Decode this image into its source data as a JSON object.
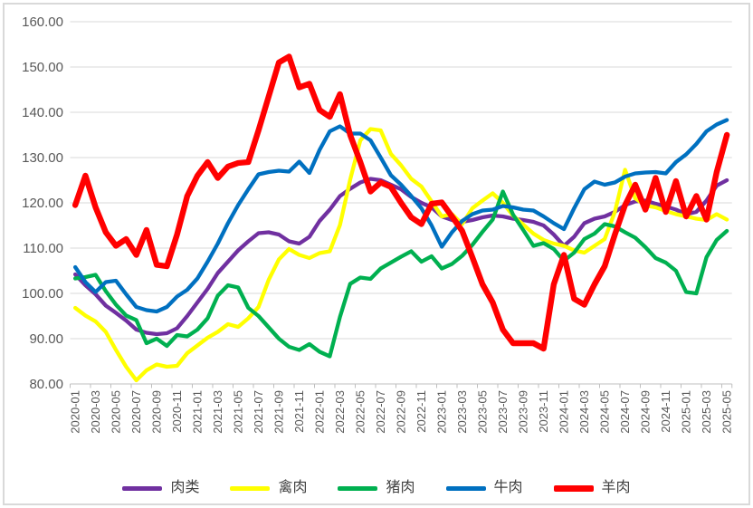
{
  "chart": {
    "background": "#FFFFFF",
    "frame_border_color": "#D9D9D9",
    "gridline_color": "#D9D9D9",
    "axis_color": "#BFBFBF",
    "tick_color": "#BFBFBF",
    "label_color": "#595959",
    "y_axis_labels": [
      "160.00",
      "150.00",
      "140.00",
      "130.00",
      "120.00",
      "110.00",
      "100.00",
      "90.00",
      "80.00"
    ],
    "x_axis_tick_labels": [
      "2020-01",
      "2020-03",
      "2020-05",
      "2020-07",
      "2020-09",
      "2020-11",
      "2021-01",
      "2021-03",
      "2021-05",
      "2021-07",
      "2021-09",
      "2021-11",
      "2022-01",
      "2022-03",
      "2022-05",
      "2022-07",
      "2022-09",
      "2022-11",
      "2023-01",
      "2023-03",
      "2023-05",
      "2023-07",
      "2023-09",
      "2023-11",
      "2024-01",
      "2024-03",
      "2024-05",
      "2024-07",
      "2024-09",
      "2024-11",
      "2025-01",
      "2025-03",
      "2025-05"
    ]
  },
  "chart_data": {
    "type": "line",
    "title": "",
    "xlabel": "",
    "ylabel": "",
    "ylim": [
      80,
      160
    ],
    "y_step": 10,
    "grid": true,
    "legend_position": "bottom",
    "categories": [
      "2020-01",
      "2020-02",
      "2020-03",
      "2020-04",
      "2020-05",
      "2020-06",
      "2020-07",
      "2020-08",
      "2020-09",
      "2020-10",
      "2020-11",
      "2020-12",
      "2021-01",
      "2021-02",
      "2021-03",
      "2021-04",
      "2021-05",
      "2021-06",
      "2021-07",
      "2021-08",
      "2021-09",
      "2021-10",
      "2021-11",
      "2021-12",
      "2022-01",
      "2022-02",
      "2022-03",
      "2022-04",
      "2022-05",
      "2022-06",
      "2022-07",
      "2022-08",
      "2022-09",
      "2022-10",
      "2022-11",
      "2022-12",
      "2023-01",
      "2023-02",
      "2023-03",
      "2023-04",
      "2023-05",
      "2023-06",
      "2023-07",
      "2023-08",
      "2023-09",
      "2023-10",
      "2023-11",
      "2023-12",
      "2024-01",
      "2024-02",
      "2024-03",
      "2024-04",
      "2024-05",
      "2024-06",
      "2024-07",
      "2024-08",
      "2024-09",
      "2024-10",
      "2024-11",
      "2024-12",
      "2025-01",
      "2025-02",
      "2025-03",
      "2025-04",
      "2025-05"
    ],
    "series": [
      {
        "name": "肉类",
        "id": "meat",
        "color": "#7030A0",
        "line_width": 4.3,
        "values": [
          104.2,
          101.8,
          99.8,
          97.3,
          95.7,
          94,
          92,
          91.3,
          91,
          91.2,
          92.3,
          95,
          98,
          101,
          104.5,
          107,
          109.5,
          111.5,
          113.3,
          113.5,
          113,
          111.5,
          111,
          112.5,
          116,
          118.5,
          121.5,
          123.1,
          124.5,
          125.3,
          125,
          124,
          123,
          121.3,
          120,
          119,
          117,
          116.2,
          115.8,
          116.2,
          116.8,
          117.2,
          117,
          116.5,
          116.2,
          115.8,
          115,
          113,
          110.5,
          112.5,
          115.5,
          116.5,
          117,
          118,
          119.5,
          120.3,
          120.5,
          119.8,
          119.2,
          118.5,
          117.5,
          118,
          120.5,
          123.8,
          125
        ]
      },
      {
        "name": "禽肉",
        "id": "poultry",
        "color": "#FFFF00",
        "line_width": 4.3,
        "values": [
          96.8,
          95.1,
          93.8,
          91.5,
          87.5,
          83.8,
          80.8,
          83,
          84.3,
          83.8,
          84,
          86.8,
          88.5,
          90.2,
          91.5,
          93.2,
          92.6,
          94.5,
          97,
          103,
          107.5,
          109.8,
          108.5,
          107.8,
          108.9,
          109.3,
          115.1,
          125.1,
          133.8,
          136.3,
          136,
          130.8,
          128.3,
          125.3,
          123.6,
          120.3,
          117,
          117.5,
          115.3,
          118.8,
          120.5,
          122.1,
          120,
          117.2,
          115.2,
          113.2,
          111.8,
          111,
          110.5,
          109.5,
          109,
          110.5,
          112,
          118,
          127.3,
          121,
          119.4,
          119,
          118.2,
          117.5,
          117,
          116.5,
          116.2,
          117.5,
          116.3
        ]
      },
      {
        "name": "猪肉",
        "id": "pork",
        "color": "#00B050",
        "line_width": 4.3,
        "values": [
          103.3,
          103.6,
          104.1,
          100.5,
          97.5,
          95.1,
          94.1,
          89,
          90,
          88.4,
          90.8,
          90.5,
          92,
          94.5,
          99.5,
          101.8,
          101.3,
          96.8,
          95,
          92.5,
          90,
          88.2,
          87.5,
          88.8,
          87.1,
          86.1,
          94.8,
          102.1,
          103.5,
          103.2,
          105.5,
          106.8,
          108.1,
          109.3,
          107,
          108.2,
          105.5,
          106.5,
          108.3,
          110.7,
          113.6,
          116.3,
          122.5,
          117.4,
          114,
          110.5,
          111.1,
          109.8,
          107.2,
          109,
          112,
          113.2,
          115.3,
          114.8,
          113.5,
          112.3,
          110.2,
          107.8,
          106.8,
          105,
          100.3,
          100,
          108,
          111.8,
          113.8
        ]
      },
      {
        "name": "牛肉",
        "id": "beef",
        "color": "#0070C0",
        "line_width": 4.3,
        "values": [
          105.8,
          102.5,
          100.3,
          102.5,
          102.8,
          99.8,
          97,
          96.3,
          96,
          97,
          99.3,
          100.8,
          103.3,
          107,
          111,
          115.5,
          119.5,
          123,
          126.3,
          126.8,
          127.1,
          126.9,
          129.1,
          126.6,
          131.7,
          135.8,
          136.9,
          135.3,
          135.3,
          133.8,
          130,
          126.1,
          124,
          121.5,
          118.8,
          115,
          110.3,
          113.5,
          116,
          117.5,
          118.3,
          118.5,
          119.3,
          119,
          118.5,
          118.3,
          117,
          115.5,
          114.2,
          118.8,
          123,
          124.7,
          124,
          124.5,
          125.8,
          126.5,
          126.7,
          126.8,
          126.5,
          129,
          130.7,
          133,
          135.8,
          137.3,
          138.3
        ]
      },
      {
        "name": "羊肉",
        "id": "mutton",
        "color": "#FF0000",
        "line_width": 6.4,
        "values": [
          119.5,
          126,
          119,
          113.5,
          110.5,
          112,
          108.5,
          114,
          106.3,
          106,
          113,
          121.5,
          126,
          129,
          125.5,
          128,
          128.8,
          129,
          136,
          143.5,
          151,
          152.3,
          145.5,
          146.3,
          140.5,
          139,
          144,
          135,
          129,
          122.5,
          124.5,
          123.5,
          120,
          116.8,
          115.3,
          119.8,
          120.1,
          117,
          113.8,
          108,
          102,
          98,
          92,
          89,
          89,
          89,
          87.8,
          102,
          108.5,
          98.8,
          97.5,
          102,
          106,
          113,
          119.5,
          124,
          118.5,
          125.5,
          118,
          124.8,
          117,
          121.5,
          116.3,
          126.8,
          135
        ]
      }
    ]
  }
}
